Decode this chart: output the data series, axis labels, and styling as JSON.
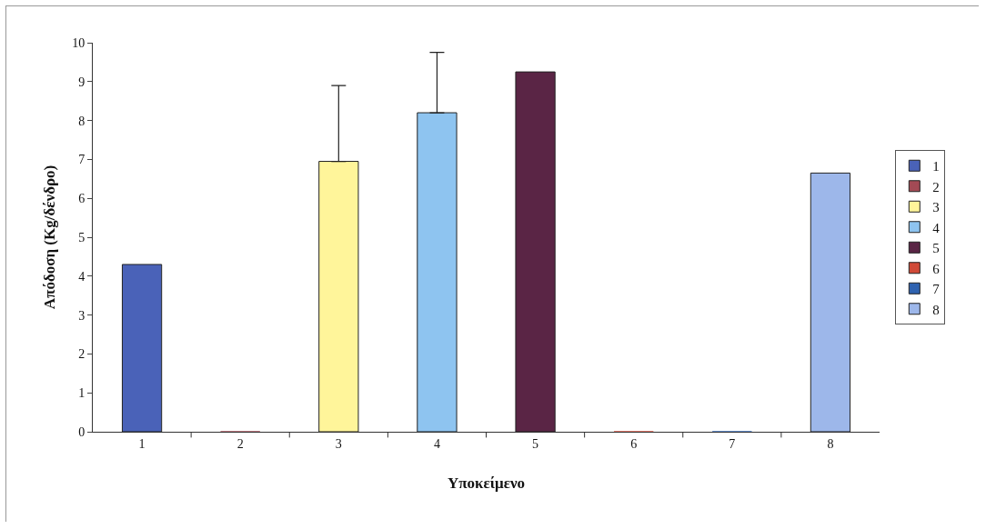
{
  "chart_data": {
    "type": "bar",
    "xlabel": "Υποκείμενο",
    "ylabel": "Απόδοση (Kg/δένδρο)",
    "categories": [
      "1",
      "2",
      "3",
      "4",
      "5",
      "6",
      "7",
      "8"
    ],
    "series": [
      {
        "name": "1",
        "color": "#4a62b8",
        "values": [
          4.3,
          null,
          null,
          null,
          null,
          null,
          null,
          null
        ]
      },
      {
        "name": "2",
        "color": "#a34a55",
        "values": [
          null,
          0,
          null,
          null,
          null,
          null,
          null,
          null
        ]
      },
      {
        "name": "3",
        "color": "#fff59a",
        "values": [
          null,
          null,
          6.95,
          null,
          null,
          null,
          null,
          null
        ],
        "errors": [
          null,
          null,
          [
            6.95,
            8.9
          ],
          null,
          null,
          null,
          null,
          null
        ]
      },
      {
        "name": "4",
        "color": "#8ec4f0",
        "values": [
          null,
          null,
          null,
          8.2,
          null,
          null,
          null,
          null
        ],
        "errors": [
          null,
          null,
          null,
          [
            8.2,
            9.75
          ],
          null,
          null,
          null,
          null
        ]
      },
      {
        "name": "5",
        "color": "#5a2545",
        "values": [
          null,
          null,
          null,
          null,
          9.25,
          null,
          null,
          null
        ]
      },
      {
        "name": "6",
        "color": "#d04a38",
        "values": [
          null,
          null,
          null,
          null,
          null,
          0,
          null,
          null
        ]
      },
      {
        "name": "7",
        "color": "#2f62b0",
        "values": [
          null,
          null,
          null,
          null,
          null,
          null,
          0,
          null
        ]
      },
      {
        "name": "8",
        "color": "#9db7ea",
        "values": [
          null,
          null,
          null,
          null,
          null,
          null,
          null,
          6.65
        ]
      }
    ],
    "ylim": [
      0,
      10
    ],
    "yticks": [
      0,
      1,
      2,
      3,
      4,
      5,
      6,
      7,
      8,
      9,
      10
    ],
    "grid": false,
    "legend": "right"
  }
}
